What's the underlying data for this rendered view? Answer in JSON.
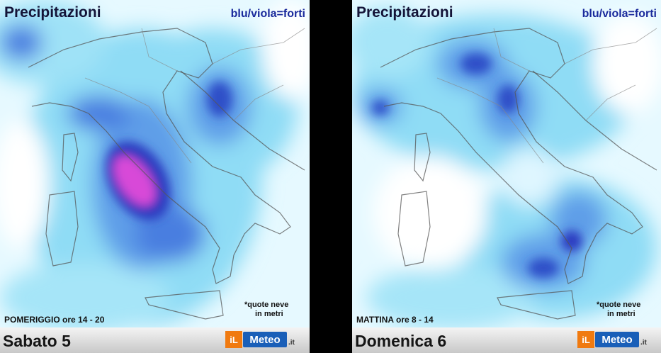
{
  "panels": [
    {
      "title": "Precipitazioni",
      "legend": "blu/viola=forti",
      "period": "POMERIGGIO ore 14 - 20",
      "snow_note": [
        "*quote neve",
        "in metri"
      ],
      "day": "Sabato 5",
      "logo": {
        "il": "iL",
        "meteo": "Meteo",
        "tld": ".it"
      }
    },
    {
      "title": "Precipitazioni",
      "legend": "blu/viola=forti",
      "period": "MATTINA ore 8 - 14",
      "snow_note": [
        "*quote neve",
        "in metri"
      ],
      "day": "Domenica 6",
      "logo": {
        "il": "iL",
        "meteo": "Meteo",
        "tld": ".it"
      }
    }
  ]
}
